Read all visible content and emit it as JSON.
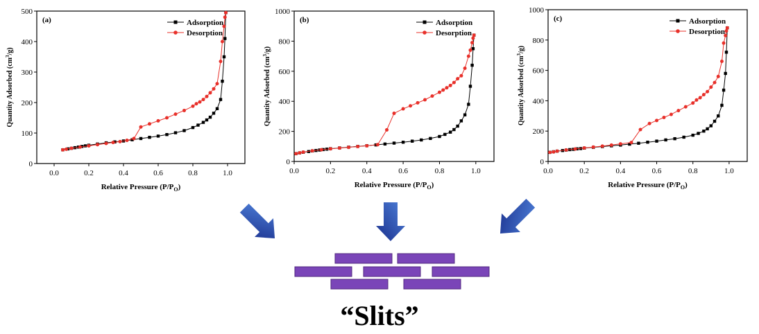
{
  "caption": "“Slits”",
  "colors": {
    "adsorption": "#000000",
    "desorption": "#e8302a",
    "arrow_dark": "#1a2f8c",
    "arrow_light": "#4d7fd8",
    "slit": "#7a45b8",
    "slit_border": "#52287f"
  },
  "chart_data": [
    {
      "type": "line",
      "panel_label": "(a)",
      "xlabel": "Relative Pressure (P/P",
      "xlabel_sub": "O",
      "xlabel_end": ")",
      "ylabel": "Quantity Adsorbed (cm",
      "ylabel_sup": "3",
      "ylabel_end": "/g)",
      "xlim": [
        -0.1,
        1.1
      ],
      "ylim": [
        0,
        500
      ],
      "xticks": [
        "0.0",
        "0.2",
        "0.4",
        "0.6",
        "0.8",
        "1.0"
      ],
      "yticks": [
        "0",
        "100",
        "200",
        "300",
        "400",
        "500"
      ],
      "legend_position": "top-right",
      "series": [
        {
          "name": "Adsorption",
          "marker": "square",
          "x": [
            0.05,
            0.08,
            0.1,
            0.12,
            0.14,
            0.16,
            0.18,
            0.2,
            0.25,
            0.3,
            0.35,
            0.4,
            0.45,
            0.5,
            0.55,
            0.6,
            0.65,
            0.7,
            0.75,
            0.8,
            0.83,
            0.86,
            0.88,
            0.9,
            0.92,
            0.94,
            0.96,
            0.97,
            0.98,
            0.985,
            0.99
          ],
          "y": [
            45,
            48,
            50,
            52,
            54,
            56,
            58,
            60,
            64,
            68,
            71,
            74,
            78,
            82,
            86,
            90,
            95,
            101,
            108,
            118,
            126,
            135,
            143,
            152,
            165,
            180,
            210,
            270,
            350,
            410,
            495
          ]
        },
        {
          "name": "Desorption",
          "marker": "circle",
          "x": [
            0.99,
            0.985,
            0.98,
            0.97,
            0.96,
            0.94,
            0.92,
            0.9,
            0.88,
            0.86,
            0.84,
            0.82,
            0.8,
            0.75,
            0.7,
            0.65,
            0.6,
            0.55,
            0.5,
            0.46,
            0.42,
            0.38,
            0.34,
            0.3,
            0.25,
            0.2,
            0.15,
            0.1,
            0.07,
            0.05
          ],
          "y": [
            495,
            480,
            450,
            400,
            335,
            262,
            245,
            232,
            220,
            210,
            202,
            196,
            188,
            174,
            162,
            150,
            140,
            130,
            120,
            82,
            76,
            72,
            69,
            66,
            62,
            58,
            54,
            50,
            47,
            45
          ]
        }
      ]
    },
    {
      "type": "line",
      "panel_label": "(b)",
      "xlabel": "Relative Pressure (P/P",
      "xlabel_sub": "O",
      "xlabel_end": ")",
      "ylabel": "Quantity Adsorbed (cm",
      "ylabel_sup": "3",
      "ylabel_end": "/g)",
      "xlim": [
        0.0,
        1.1
      ],
      "ylim": [
        0,
        1000
      ],
      "xticks": [
        "0.0",
        "0.2",
        "0.4",
        "0.6",
        "0.8",
        "1.0"
      ],
      "yticks": [
        "0",
        "200",
        "400",
        "600",
        "800",
        "1000"
      ],
      "legend_position": "top-right",
      "series": [
        {
          "name": "Adsorption",
          "marker": "square",
          "x": [
            0.01,
            0.03,
            0.05,
            0.08,
            0.1,
            0.12,
            0.14,
            0.16,
            0.18,
            0.2,
            0.25,
            0.3,
            0.35,
            0.4,
            0.45,
            0.5,
            0.55,
            0.6,
            0.65,
            0.7,
            0.75,
            0.8,
            0.83,
            0.86,
            0.88,
            0.9,
            0.92,
            0.94,
            0.96,
            0.97,
            0.98,
            0.985,
            0.99
          ],
          "y": [
            52,
            57,
            61,
            66,
            70,
            73,
            76,
            79,
            82,
            85,
            90,
            95,
            100,
            105,
            110,
            116,
            122,
            128,
            135,
            143,
            153,
            166,
            180,
            195,
            212,
            235,
            270,
            310,
            380,
            500,
            640,
            750,
            840
          ]
        },
        {
          "name": "Desorption",
          "marker": "circle",
          "x": [
            0.99,
            0.985,
            0.98,
            0.97,
            0.96,
            0.94,
            0.92,
            0.9,
            0.88,
            0.86,
            0.84,
            0.82,
            0.8,
            0.76,
            0.72,
            0.68,
            0.64,
            0.6,
            0.55,
            0.51,
            0.46,
            0.4,
            0.35,
            0.3,
            0.25,
            0.2,
            0.15,
            0.1,
            0.05,
            0.03,
            0.01
          ],
          "y": [
            840,
            820,
            790,
            740,
            700,
            620,
            570,
            550,
            525,
            505,
            490,
            475,
            460,
            435,
            410,
            390,
            370,
            350,
            320,
            210,
            112,
            104,
            99,
            94,
            89,
            84,
            78,
            71,
            62,
            57,
            52
          ]
        }
      ]
    },
    {
      "type": "line",
      "panel_label": "(c)",
      "xlabel": "Relative Pressure (P/P",
      "xlabel_sub": "O",
      "xlabel_end": ")",
      "ylabel": "Quantity Adsorbed (cm",
      "ylabel_sup": "3",
      "ylabel_end": "/g)",
      "xlim": [
        0.0,
        1.1
      ],
      "ylim": [
        0,
        1000
      ],
      "xticks": [
        "0.0",
        "0.2",
        "0.4",
        "0.6",
        "0.8",
        "1.0"
      ],
      "yticks": [
        "0",
        "200",
        "400",
        "600",
        "800",
        "1000"
      ],
      "legend_position": "top-right",
      "series": [
        {
          "name": "Adsorption",
          "marker": "square",
          "x": [
            0.01,
            0.03,
            0.05,
            0.08,
            0.1,
            0.12,
            0.14,
            0.16,
            0.18,
            0.2,
            0.25,
            0.3,
            0.35,
            0.4,
            0.45,
            0.5,
            0.55,
            0.6,
            0.65,
            0.7,
            0.75,
            0.8,
            0.83,
            0.86,
            0.88,
            0.9,
            0.92,
            0.94,
            0.96,
            0.97,
            0.98,
            0.985,
            0.99
          ],
          "y": [
            60,
            64,
            68,
            72,
            75,
            78,
            80,
            83,
            85,
            88,
            93,
            98,
            103,
            108,
            114,
            120,
            127,
            134,
            142,
            150,
            160,
            173,
            185,
            200,
            215,
            235,
            265,
            300,
            370,
            470,
            580,
            720,
            880
          ]
        },
        {
          "name": "Desorption",
          "marker": "circle",
          "x": [
            0.99,
            0.985,
            0.98,
            0.97,
            0.96,
            0.94,
            0.92,
            0.9,
            0.88,
            0.86,
            0.84,
            0.82,
            0.8,
            0.76,
            0.72,
            0.68,
            0.64,
            0.6,
            0.56,
            0.51,
            0.46,
            0.4,
            0.35,
            0.3,
            0.25,
            0.2,
            0.15,
            0.1,
            0.05,
            0.03,
            0.01
          ],
          "y": [
            880,
            860,
            830,
            780,
            660,
            560,
            520,
            490,
            460,
            440,
            420,
            405,
            385,
            360,
            335,
            310,
            290,
            270,
            250,
            210,
            125,
            116,
            108,
            101,
            95,
            89,
            82,
            76,
            68,
            63,
            60
          ]
        }
      ]
    }
  ]
}
